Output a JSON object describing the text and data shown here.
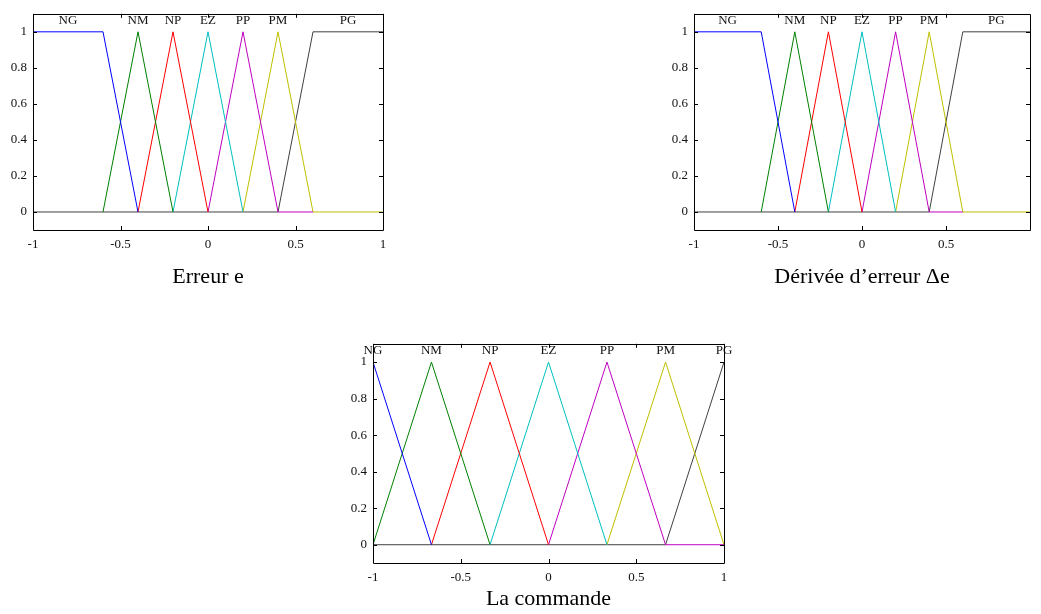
{
  "chart_data": [
    {
      "type": "line",
      "xlabel": "Erreur e",
      "xlim": [
        -1,
        1
      ],
      "ylim": [
        -0.1,
        1.1
      ],
      "xticks": [
        -1,
        -0.5,
        0,
        0.5,
        1
      ],
      "yticks": [
        0,
        0.2,
        0.4,
        0.6,
        0.8,
        1
      ],
      "series": [
        {
          "name": "NG",
          "color": "#0000ff",
          "x": [
            -1,
            -0.6,
            -0.4
          ],
          "values": [
            1,
            1,
            0
          ]
        },
        {
          "name": "NM",
          "color": "#008000",
          "x": [
            -0.6,
            -0.4,
            -0.2
          ],
          "values": [
            0,
            1,
            0
          ]
        },
        {
          "name": "NP",
          "color": "#ff0000",
          "x": [
            -0.4,
            -0.2,
            0
          ],
          "values": [
            0,
            1,
            0
          ]
        },
        {
          "name": "EZ",
          "color": "#00bfbf",
          "x": [
            -0.2,
            0,
            0.2
          ],
          "values": [
            0,
            1,
            0
          ]
        },
        {
          "name": "PP",
          "color": "#bf00bf",
          "x": [
            0,
            0.2,
            0.4,
            0.6
          ],
          "values": [
            0,
            1,
            0,
            0
          ]
        },
        {
          "name": "PM",
          "color": "#bfbf00",
          "x": [
            0.2,
            0.4,
            0.6,
            1
          ],
          "values": [
            0,
            1,
            0,
            0
          ]
        },
        {
          "name": "PG",
          "color": "#404040",
          "x": [
            -1,
            0.4,
            0.6,
            1
          ],
          "values": [
            0,
            0,
            1,
            1
          ]
        }
      ]
    },
    {
      "type": "line",
      "xlabel": "Dérivée d’erreur Δe",
      "xlim": [
        -1,
        1
      ],
      "ylim": [
        -0.1,
        1.1
      ],
      "xticks": [
        -1,
        -0.5,
        0,
        0.5
      ],
      "yticks": [
        0,
        0.2,
        0.4,
        0.6,
        0.8,
        1
      ],
      "series": [
        {
          "name": "NG",
          "color": "#0000ff",
          "x": [
            -1,
            -0.6,
            -0.4
          ],
          "values": [
            1,
            1,
            0
          ]
        },
        {
          "name": "NM",
          "color": "#008000",
          "x": [
            -0.6,
            -0.4,
            -0.2
          ],
          "values": [
            0,
            1,
            0
          ]
        },
        {
          "name": "NP",
          "color": "#ff0000",
          "x": [
            -0.4,
            -0.2,
            0
          ],
          "values": [
            0,
            1,
            0
          ]
        },
        {
          "name": "EZ",
          "color": "#00bfbf",
          "x": [
            -0.2,
            0,
            0.2
          ],
          "values": [
            0,
            1,
            0
          ]
        },
        {
          "name": "PP",
          "color": "#bf00bf",
          "x": [
            0,
            0.2,
            0.4,
            0.6
          ],
          "values": [
            0,
            1,
            0,
            0
          ]
        },
        {
          "name": "PM",
          "color": "#bfbf00",
          "x": [
            0.2,
            0.4,
            0.6,
            1
          ],
          "values": [
            0,
            1,
            0,
            0
          ]
        },
        {
          "name": "PG",
          "color": "#404040",
          "x": [
            -1,
            0.4,
            0.6,
            1
          ],
          "values": [
            0,
            0,
            1,
            1
          ]
        }
      ]
    },
    {
      "type": "line",
      "xlabel": "La commande",
      "xlim": [
        -1,
        1
      ],
      "ylim": [
        -0.1,
        1.1
      ],
      "xticks": [
        -1,
        -0.5,
        0,
        0.5,
        1
      ],
      "yticks": [
        0,
        0.2,
        0.4,
        0.6,
        0.8,
        1
      ],
      "series": [
        {
          "name": "NG",
          "color": "#0000ff",
          "x": [
            -1,
            -0.667
          ],
          "values": [
            1,
            0
          ]
        },
        {
          "name": "NM",
          "color": "#008000",
          "x": [
            -1,
            -0.667,
            -0.333
          ],
          "values": [
            0,
            1,
            0
          ]
        },
        {
          "name": "NP",
          "color": "#ff0000",
          "x": [
            -0.667,
            -0.333,
            0
          ],
          "values": [
            0,
            1,
            0
          ]
        },
        {
          "name": "EZ",
          "color": "#00bfbf",
          "x": [
            -0.333,
            0,
            0.333
          ],
          "values": [
            0,
            1,
            0
          ]
        },
        {
          "name": "PP",
          "color": "#bf00bf",
          "x": [
            0,
            0.333,
            0.667,
            1
          ],
          "values": [
            0,
            1,
            0,
            0
          ]
        },
        {
          "name": "PM",
          "color": "#bfbf00",
          "x": [
            0.333,
            0.667,
            1
          ],
          "values": [
            0,
            1,
            0
          ]
        },
        {
          "name": "PG",
          "color": "#404040",
          "x": [
            -1,
            0.667,
            1
          ],
          "values": [
            0,
            0,
            1
          ]
        }
      ]
    }
  ]
}
